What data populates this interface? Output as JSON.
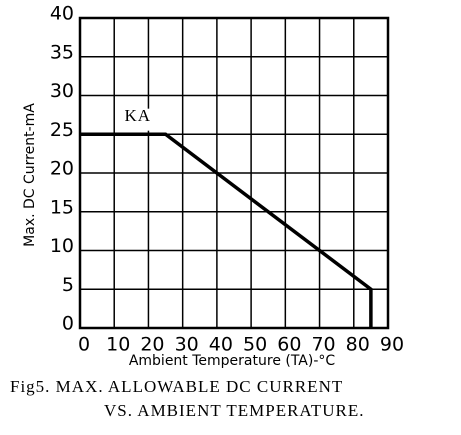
{
  "chart_data": {
    "type": "line",
    "caption": [
      "Fig5. MAX. ALLOWABLE DC CURRENT",
      "VS. AMBIENT TEMPERATURE."
    ],
    "x_label": "Ambient Temperature (TA)-°C",
    "y_label": "Max. DC Current-mA",
    "annotation": "KA",
    "x": [
      0,
      25,
      85,
      85
    ],
    "series": [
      {
        "name": "KA",
        "color": "#000000",
        "values": [
          25,
          25,
          5,
          0
        ]
      }
    ],
    "xlim": [
      0,
      90
    ],
    "xticks": [
      0,
      10,
      20,
      30,
      40,
      50,
      60,
      70,
      80,
      90
    ],
    "ylim": [
      0,
      40
    ],
    "yticks": [
      0,
      5,
      10,
      15,
      20,
      25,
      30,
      35,
      40
    ],
    "grid": true
  }
}
